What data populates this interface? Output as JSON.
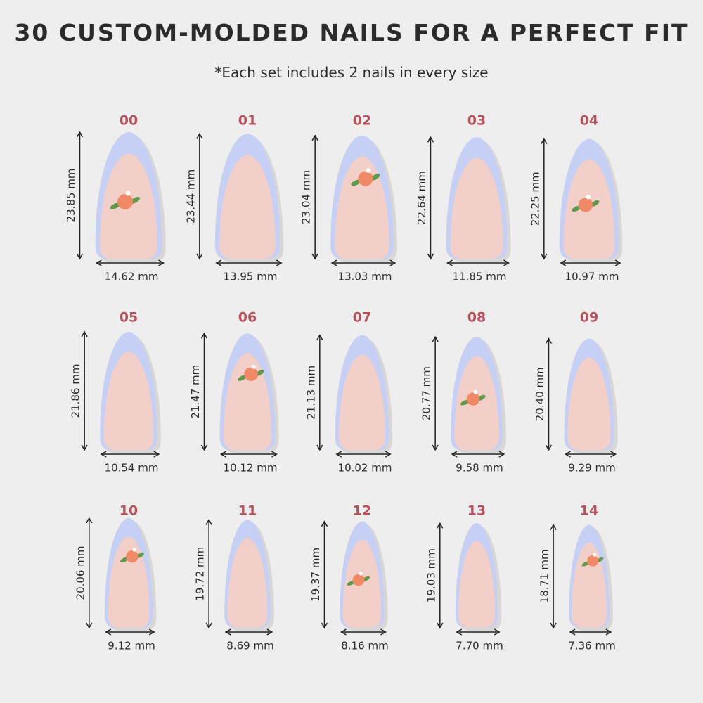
{
  "header": {
    "title": "30 CUSTOM-MOLDED NAILS FOR A PERFECT FIT",
    "subtitle": "*Each set includes 2 nails in every size"
  },
  "nails": [
    {
      "label": "00",
      "length": "23.85 mm",
      "width": "14.62 mm"
    },
    {
      "label": "01",
      "length": "23.44 mm",
      "width": "13.95 mm"
    },
    {
      "label": "02",
      "length": "23.04 mm",
      "width": "13.03 mm"
    },
    {
      "label": "03",
      "length": "22.64 mm",
      "width": "11.85 mm"
    },
    {
      "label": "04",
      "length": "22.25 mm",
      "width": "10.97 mm"
    },
    {
      "label": "05",
      "length": "21.86 mm",
      "width": "10.54 mm"
    },
    {
      "label": "06",
      "length": "21.47 mm",
      "width": "10.12 mm"
    },
    {
      "label": "07",
      "length": "21.13 mm",
      "width": "10.02 mm"
    },
    {
      "label": "08",
      "length": "20.77 mm",
      "width": "9.58 mm"
    },
    {
      "label": "09",
      "length": "20.40 mm",
      "width": "9.29 mm"
    },
    {
      "label": "10",
      "length": "20.06 mm",
      "width": "9.12 mm"
    },
    {
      "label": "11",
      "length": "19.72 mm",
      "width": "8.69 mm"
    },
    {
      "label": "12",
      "length": "19.37 mm",
      "width": "8.16 mm"
    },
    {
      "label": "13",
      "length": "19.03 mm",
      "width": "7.70 mm"
    },
    {
      "label": "14",
      "length": "18.71 mm",
      "width": "7.36 mm"
    }
  ]
}
